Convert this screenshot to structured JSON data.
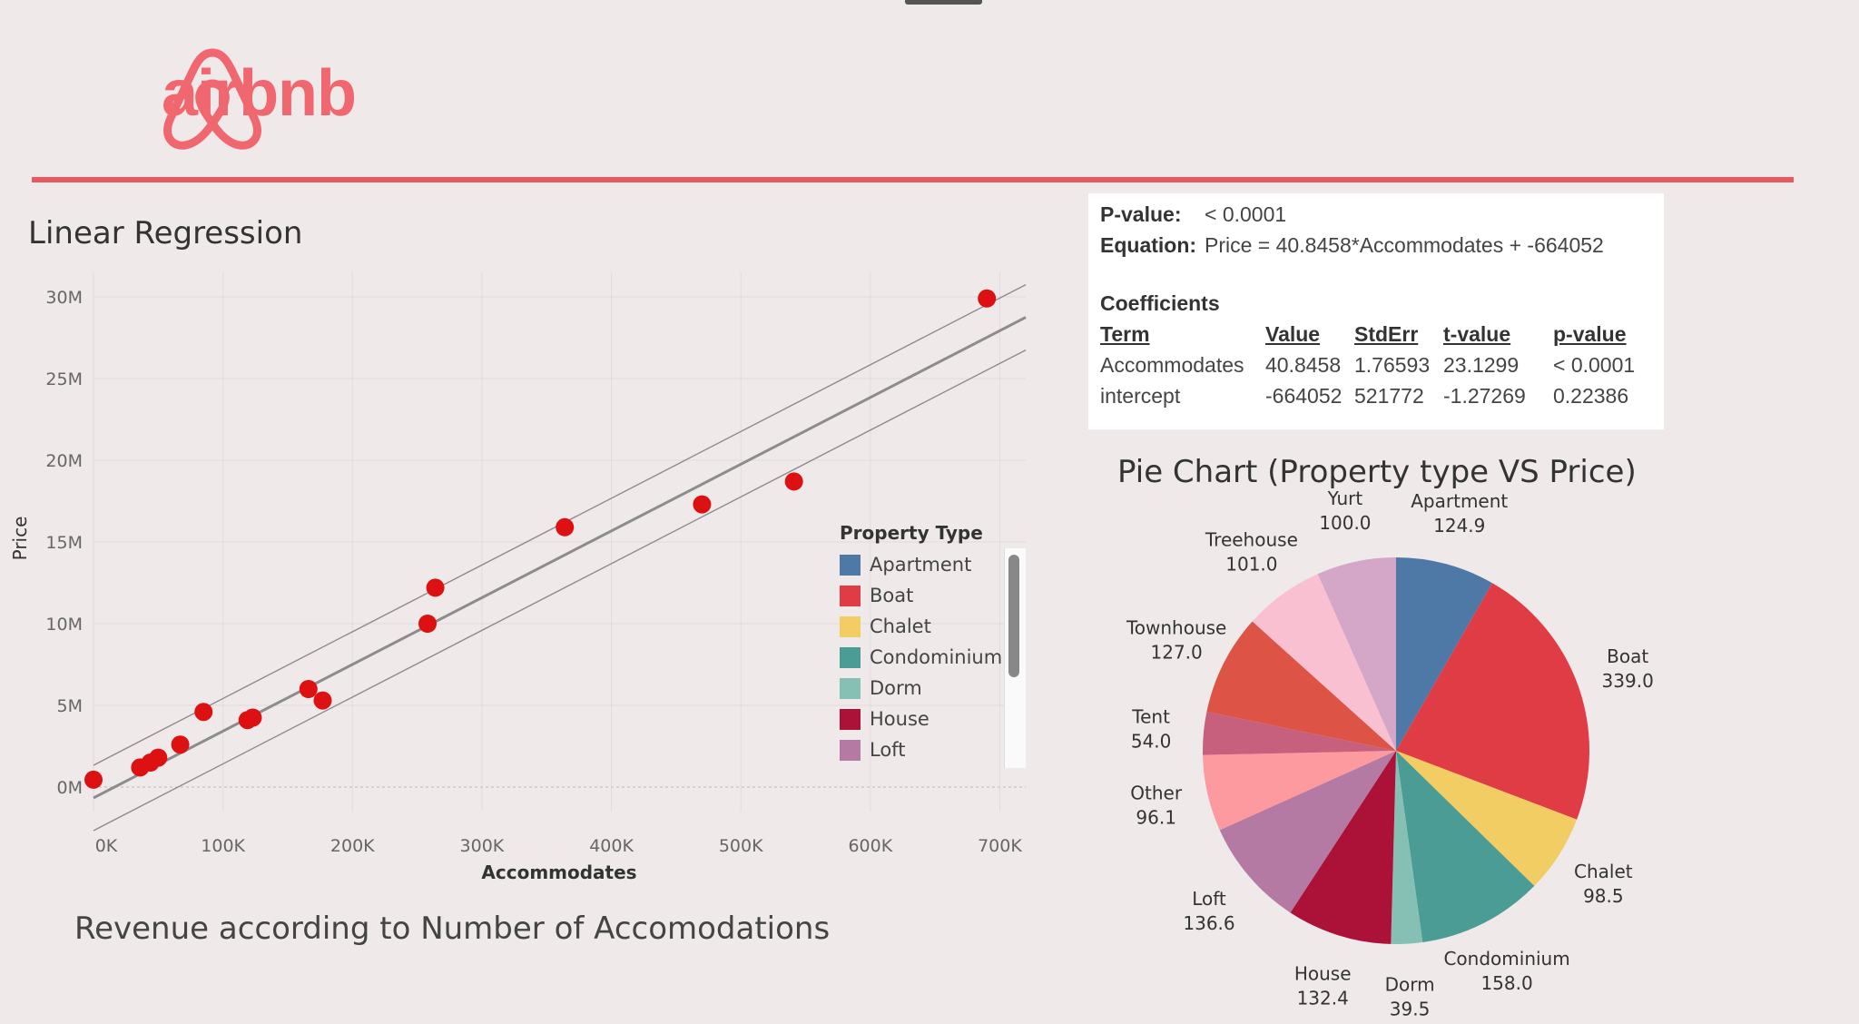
{
  "brand": {
    "name": "airbnb",
    "color": "#f06770",
    "icon": "airbnb-belo-logo"
  },
  "regression": {
    "section_title": "Linear Regression",
    "caption": "Revenue according to Number of Accomodations",
    "stats": {
      "pvalue_label": "P-value:",
      "pvalue": "< 0.0001",
      "equation_label": "Equation:",
      "equation": "Price = 40.8458*Accommodates + -664052",
      "coef_title": "Coefficients",
      "headers": [
        "Term",
        "Value",
        "StdErr",
        "t-value",
        "p-value"
      ],
      "rows": [
        [
          "Accommodates",
          "40.8458",
          "1.76593",
          "23.1299",
          "< 0.0001"
        ],
        [
          "intercept",
          "-664052",
          "521772",
          "-1.27269",
          "0.22386"
        ]
      ]
    }
  },
  "legend": {
    "title": "Property Type",
    "items": [
      {
        "label": "Apartment",
        "color": "#4e79a7"
      },
      {
        "label": "Boat",
        "color": "#e03c45"
      },
      {
        "label": "Chalet",
        "color": "#f1cd63"
      },
      {
        "label": "Condominium",
        "color": "#4a9c94"
      },
      {
        "label": "Dorm",
        "color": "#86c0b5"
      },
      {
        "label": "House",
        "color": "#ac1138"
      },
      {
        "label": "Loft",
        "color": "#b47aa3"
      }
    ]
  },
  "chart_data": [
    {
      "type": "scatter",
      "title": "Linear Regression",
      "xlabel": "Accommodates",
      "ylabel": "Price",
      "xlim": [
        0,
        720000
      ],
      "ylim": [
        -1500000,
        31500000
      ],
      "x_ticks": [
        0,
        100000,
        200000,
        300000,
        400000,
        500000,
        600000,
        700000
      ],
      "x_tick_labels": [
        "0K",
        "100K",
        "200K",
        "300K",
        "400K",
        "500K",
        "600K",
        "700K"
      ],
      "y_ticks": [
        0,
        5000000,
        10000000,
        15000000,
        20000000,
        25000000,
        30000000
      ],
      "y_tick_labels": [
        "0M",
        "5M",
        "10M",
        "15M",
        "20M",
        "25M",
        "30M"
      ],
      "grid": true,
      "point_color": "#dd1111",
      "trend_color": "#8c8c8c",
      "trend": {
        "slope": 40.8458,
        "intercept": -664052
      },
      "band_offset": 2000000,
      "points": [
        {
          "x": 0,
          "y": 450000
        },
        {
          "x": 36000,
          "y": 1200000
        },
        {
          "x": 44000,
          "y": 1500000
        },
        {
          "x": 50000,
          "y": 1800000
        },
        {
          "x": 67000,
          "y": 2600000
        },
        {
          "x": 85000,
          "y": 4600000
        },
        {
          "x": 119000,
          "y": 4100000
        },
        {
          "x": 123000,
          "y": 4250000
        },
        {
          "x": 166000,
          "y": 6000000
        },
        {
          "x": 177000,
          "y": 5300000
        },
        {
          "x": 258000,
          "y": 10000000
        },
        {
          "x": 264000,
          "y": 12200000
        },
        {
          "x": 364000,
          "y": 15900000
        },
        {
          "x": 470000,
          "y": 17300000
        },
        {
          "x": 541000,
          "y": 18700000
        },
        {
          "x": 690000,
          "y": 29900000
        }
      ]
    },
    {
      "type": "pie",
      "title": "Pie Chart (Property type VS Price)",
      "slices": [
        {
          "label": "Apartment",
          "value": 124.9,
          "color": "#4e79a7"
        },
        {
          "label": "Boat",
          "value": 339.0,
          "color": "#e03c45"
        },
        {
          "label": "Chalet",
          "value": 98.5,
          "color": "#f1cd63"
        },
        {
          "label": "Condominium",
          "value": 158.0,
          "color": "#4a9c94"
        },
        {
          "label": "Dorm",
          "value": 39.5,
          "color": "#86c0b5"
        },
        {
          "label": "House",
          "value": 132.4,
          "color": "#ac1138"
        },
        {
          "label": "Loft",
          "value": 136.6,
          "color": "#b47aa3"
        },
        {
          "label": "Other",
          "value": 96.1,
          "color": "#fd9aa0"
        },
        {
          "label": "Tent",
          "value": 54.0,
          "color": "#c6607c"
        },
        {
          "label": "Townhouse",
          "value": 127.0,
          "color": "#dd5446"
        },
        {
          "label": "Treehouse",
          "value": 101.0,
          "color": "#f9c0d2"
        },
        {
          "label": "Yurt",
          "value": 100.0,
          "color": "#d4a6c8"
        }
      ]
    }
  ]
}
